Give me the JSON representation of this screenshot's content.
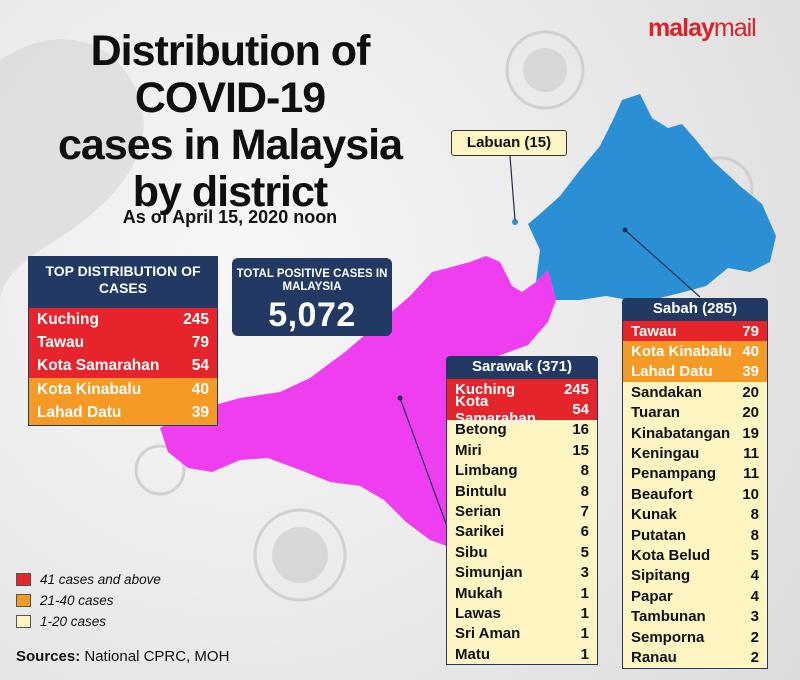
{
  "brand": {
    "part1": "malay",
    "part2": "mail"
  },
  "title_lines": [
    "Distribution of",
    "COVID-19",
    "cases in Malaysia",
    "by district"
  ],
  "subtitle": "As of April 15, 2020 noon",
  "colors": {
    "high": "#e5252b",
    "mid": "#f59a25",
    "low": "#fdf6c3",
    "navy": "#223a63",
    "sarawak": "#ee3ef0",
    "sabah": "#2b8fd6"
  },
  "labuan_label": "Labuan (15)",
  "top_distribution": {
    "title": "TOP DISTRIBUTION OF CASES",
    "rows": [
      {
        "name": "Kuching",
        "count": "245",
        "level": "red"
      },
      {
        "name": "Tawau",
        "count": "79",
        "level": "red"
      },
      {
        "name": "Kota Samarahan",
        "count": "54",
        "level": "red"
      },
      {
        "name": "Kota Kinabalu",
        "count": "40",
        "level": "orange"
      },
      {
        "name": "Lahad Datu",
        "count": "39",
        "level": "orange"
      }
    ]
  },
  "total": {
    "label": "TOTAL POSITIVE CASES IN MALAYSIA",
    "value": "5,072"
  },
  "sarawak": {
    "title": "Sarawak (371)",
    "rows": [
      {
        "name": "Kuching",
        "count": "245",
        "level": "red"
      },
      {
        "name": "Kota Samarahan",
        "count": "54",
        "level": "red"
      },
      {
        "name": "Betong",
        "count": "16",
        "level": "yellow"
      },
      {
        "name": "Miri",
        "count": "15",
        "level": "yellow"
      },
      {
        "name": "Limbang",
        "count": "8",
        "level": "yellow"
      },
      {
        "name": "Bintulu",
        "count": "8",
        "level": "yellow"
      },
      {
        "name": "Serian",
        "count": "7",
        "level": "yellow"
      },
      {
        "name": "Sarikei",
        "count": "6",
        "level": "yellow"
      },
      {
        "name": "Sibu",
        "count": "5",
        "level": "yellow"
      },
      {
        "name": "Simunjan",
        "count": "3",
        "level": "yellow"
      },
      {
        "name": "Mukah",
        "count": "1",
        "level": "yellow"
      },
      {
        "name": "Lawas",
        "count": "1",
        "level": "yellow"
      },
      {
        "name": "Sri  Aman",
        "count": "1",
        "level": "yellow"
      },
      {
        "name": "Matu",
        "count": "1",
        "level": "yellow"
      }
    ]
  },
  "sabah": {
    "title": "Sabah (285)",
    "rows": [
      {
        "name": "Tawau",
        "count": "79",
        "level": "red"
      },
      {
        "name": "Kota Kinabalu",
        "count": "40",
        "level": "orange"
      },
      {
        "name": "Lahad Datu",
        "count": "39",
        "level": "orange"
      },
      {
        "name": "Sandakan",
        "count": "20",
        "level": "yellow"
      },
      {
        "name": "Tuaran",
        "count": "20",
        "level": "yellow"
      },
      {
        "name": "Kinabatangan",
        "count": "19",
        "level": "yellow"
      },
      {
        "name": "Keningau",
        "count": "11",
        "level": "yellow"
      },
      {
        "name": "Penampang",
        "count": "11",
        "level": "yellow"
      },
      {
        "name": "Beaufort",
        "count": "10",
        "level": "yellow"
      },
      {
        "name": "Kunak",
        "count": "8",
        "level": "yellow"
      },
      {
        "name": "Putatan",
        "count": "8",
        "level": "yellow"
      },
      {
        "name": "Kota Belud",
        "count": "5",
        "level": "yellow"
      },
      {
        "name": "Sipitang",
        "count": "4",
        "level": "yellow"
      },
      {
        "name": "Papar",
        "count": "4",
        "level": "yellow"
      },
      {
        "name": "Tambunan",
        "count": "3",
        "level": "yellow"
      },
      {
        "name": "Semporna",
        "count": "2",
        "level": "yellow"
      },
      {
        "name": "Ranau",
        "count": "2",
        "level": "yellow"
      }
    ]
  },
  "legend": [
    {
      "label": "41 cases and above",
      "level": "red"
    },
    {
      "label": "21-40 cases",
      "level": "orange"
    },
    {
      "label": "1-20 cases",
      "level": "yellow"
    }
  ],
  "sources": {
    "label": "Sources:",
    "text": "National CPRC, MOH"
  }
}
